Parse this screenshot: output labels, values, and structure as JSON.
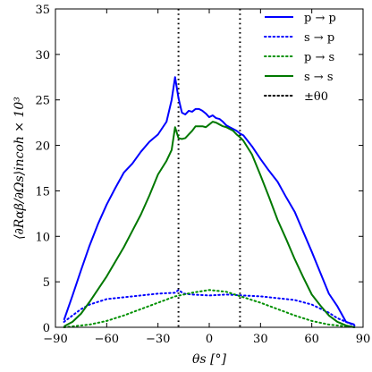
{
  "chart_data": {
    "type": "line",
    "xlabel": "θs [°]",
    "ylabel": "⟨∂Rαβ/∂Ωs⟩incoh × 10³",
    "xlim": [
      -90,
      90
    ],
    "ylim": [
      0,
      35
    ],
    "xticks": [
      "−90",
      "−60",
      "−30",
      "0",
      "30",
      "60",
      "90"
    ],
    "yticks": [
      "0",
      "5",
      "10",
      "15",
      "20",
      "25",
      "30",
      "35"
    ],
    "grid": false,
    "legend_position": "top-right",
    "theta0": 18,
    "series": [
      {
        "name": "p → p",
        "color": "#0000ff",
        "style": "solid",
        "x": [
          -85,
          -80,
          -75,
          -70,
          -65,
          -60,
          -55,
          -50,
          -45,
          -40,
          -35,
          -30,
          -25,
          -22,
          -20,
          -18,
          -16,
          -14,
          -12,
          -10,
          -8,
          -6,
          -4,
          -2,
          0,
          2,
          4,
          6,
          8,
          10,
          12,
          14,
          16,
          18,
          20,
          25,
          30,
          35,
          40,
          45,
          50,
          55,
          60,
          65,
          70,
          75,
          80,
          85
        ],
        "y": [
          0.8,
          3.5,
          6.3,
          9.0,
          11.4,
          13.5,
          15.3,
          17.0,
          18.0,
          19.3,
          20.4,
          21.2,
          22.6,
          25.0,
          27.5,
          25.2,
          23.6,
          23.4,
          23.8,
          23.7,
          24.0,
          24.0,
          23.8,
          23.5,
          23.1,
          23.3,
          23.0,
          22.9,
          22.6,
          22.2,
          22.0,
          21.8,
          21.6,
          21.3,
          21.1,
          19.9,
          18.5,
          17.2,
          16.0,
          14.3,
          12.7,
          10.5,
          8.3,
          6.0,
          3.7,
          2.3,
          0.6,
          0.3
        ]
      },
      {
        "name": "s → p",
        "color": "#0000ff",
        "style": "dotted",
        "x": [
          -85,
          -80,
          -75,
          -70,
          -60,
          -50,
          -40,
          -30,
          -20,
          -18,
          -15,
          -10,
          0,
          10,
          20,
          30,
          40,
          50,
          60,
          70,
          75,
          80,
          85
        ],
        "y": [
          0.6,
          1.3,
          2.0,
          2.5,
          3.1,
          3.3,
          3.5,
          3.7,
          3.8,
          4.1,
          3.7,
          3.6,
          3.5,
          3.6,
          3.5,
          3.4,
          3.2,
          3.0,
          2.5,
          1.6,
          1.0,
          0.6,
          0.2
        ]
      },
      {
        "name": "p → s",
        "color": "#009000",
        "style": "dotted",
        "x": [
          -85,
          -80,
          -70,
          -60,
          -50,
          -40,
          -30,
          -20,
          -10,
          0,
          10,
          20,
          30,
          40,
          50,
          60,
          70,
          80,
          85
        ],
        "y": [
          0.0,
          0.1,
          0.3,
          0.7,
          1.3,
          2.0,
          2.7,
          3.4,
          3.8,
          4.1,
          3.9,
          3.3,
          2.7,
          2.0,
          1.3,
          0.7,
          0.3,
          0.1,
          0.0
        ]
      },
      {
        "name": "s → s",
        "color": "#007800",
        "style": "solid",
        "x": [
          -85,
          -80,
          -75,
          -70,
          -65,
          -60,
          -55,
          -50,
          -45,
          -40,
          -35,
          -30,
          -25,
          -22,
          -20,
          -18,
          -16,
          -14,
          -12,
          -10,
          -8,
          -6,
          -4,
          -2,
          0,
          2,
          4,
          6,
          8,
          10,
          12,
          14,
          16,
          18,
          20,
          25,
          30,
          35,
          40,
          45,
          50,
          55,
          60,
          65,
          70,
          75,
          80,
          85
        ],
        "y": [
          0.1,
          0.6,
          1.5,
          2.8,
          4.2,
          5.6,
          7.2,
          8.8,
          10.6,
          12.4,
          14.5,
          16.8,
          18.3,
          19.5,
          22.0,
          20.8,
          20.7,
          20.8,
          21.2,
          21.6,
          22.1,
          22.1,
          22.1,
          22.0,
          22.3,
          22.6,
          22.5,
          22.3,
          22.1,
          22.0,
          21.8,
          21.6,
          21.2,
          20.9,
          20.5,
          19.0,
          16.7,
          14.3,
          11.8,
          9.7,
          7.5,
          5.5,
          3.6,
          2.4,
          1.3,
          0.6,
          0.2,
          0.0
        ]
      }
    ],
    "vlines": {
      "name": "±θ0",
      "color": "#000000",
      "style": "dotted"
    }
  }
}
